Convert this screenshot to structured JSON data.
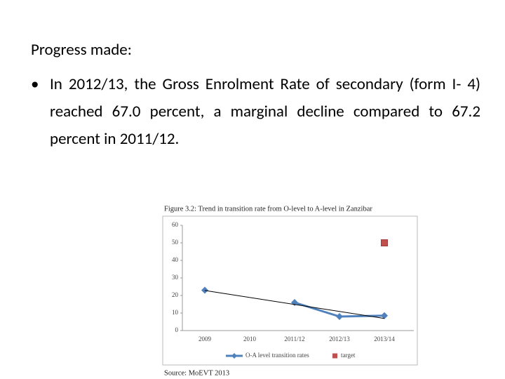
{
  "heading": "Progress made:",
  "bullets": [
    "In 2012/13, the Gross Enrolment Rate of secondary (form I- 4) reached 67.0 percent, a marginal decline compared to 67.2 percent in 2011/12."
  ],
  "chart_data": {
    "type": "line",
    "title": "Figure 3.2:  Trend in transition rate from O-level to A-level in Zanzibar",
    "categories": [
      "2009",
      "2010",
      "2011/12",
      "2012/13",
      "2013/14"
    ],
    "series": [
      {
        "name": "O-A level transition rates",
        "color": "#4f81bd",
        "values": [
          23,
          null,
          16,
          8,
          8.5
        ]
      },
      {
        "name": "target",
        "color": "#c0504d",
        "values": [
          null,
          null,
          null,
          null,
          50
        ]
      }
    ],
    "ylim": [
      0,
      60
    ],
    "yticks": [
      0,
      10,
      20,
      30,
      40,
      50,
      60
    ],
    "legend": "bottom",
    "source": "Source: MoEVT 2013"
  }
}
